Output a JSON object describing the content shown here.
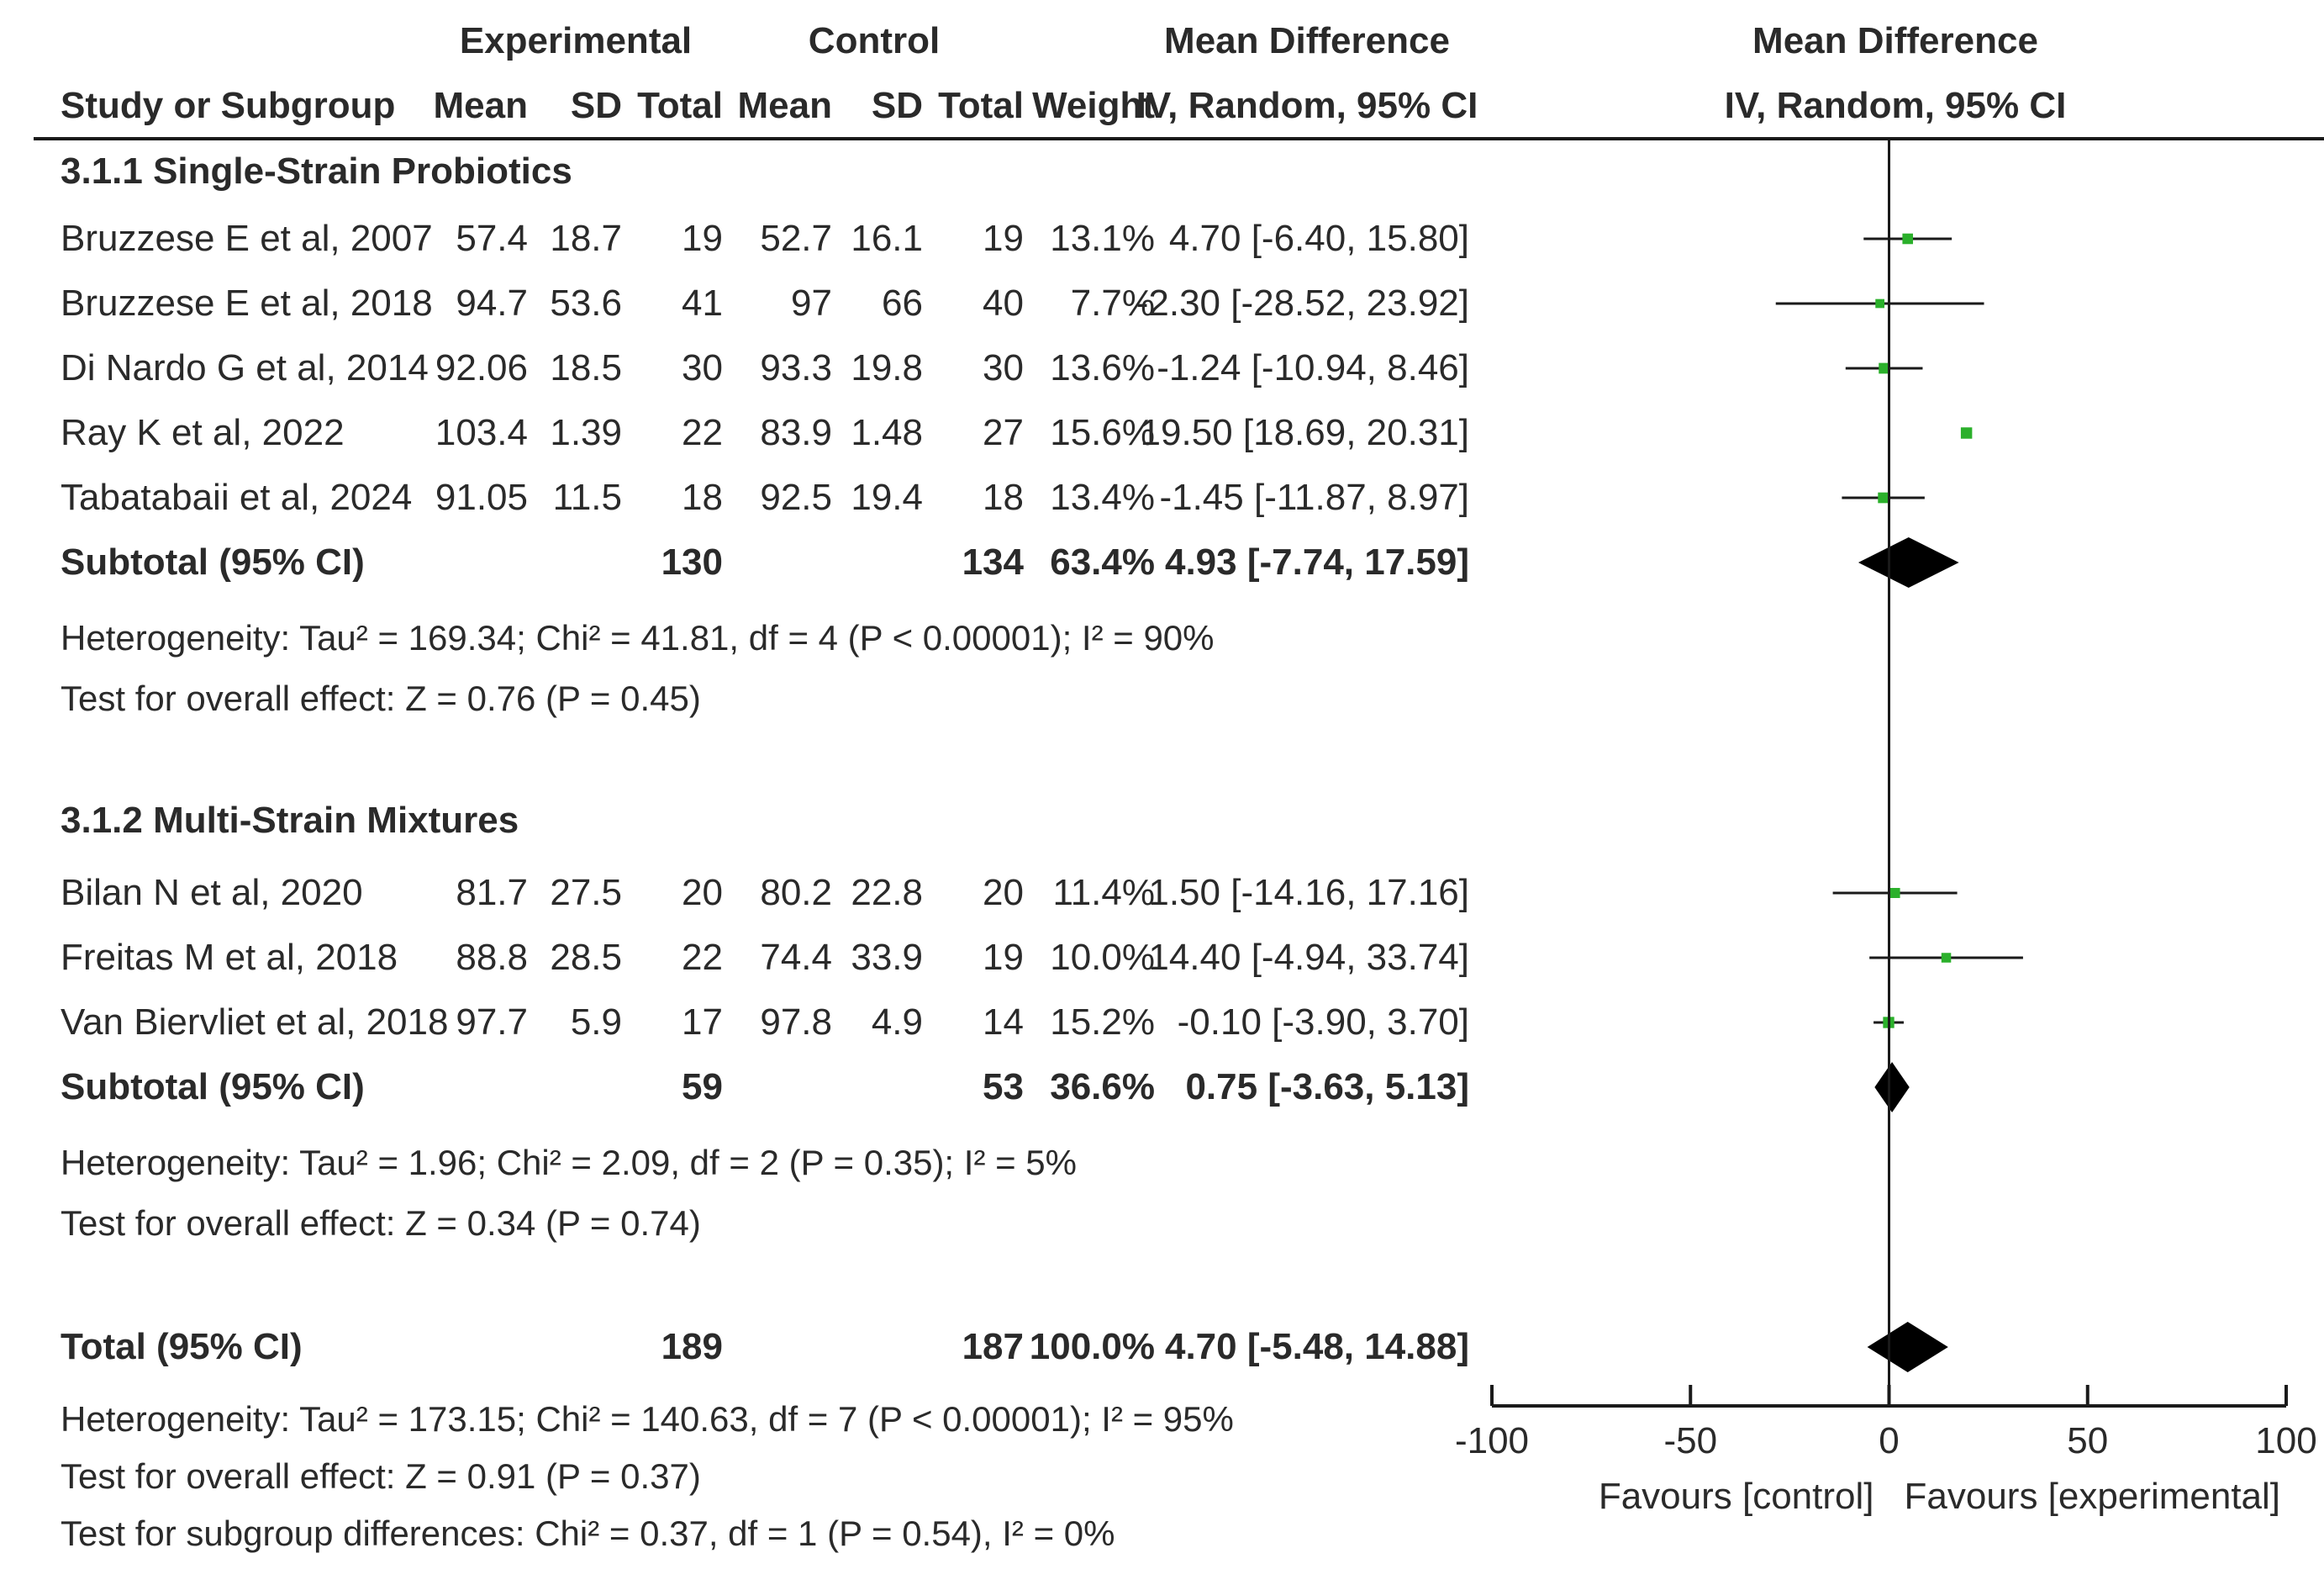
{
  "chart_data": {
    "type": "forest",
    "header": {
      "experimental": "Experimental",
      "control": "Control",
      "mean_difference_col": "Mean Difference",
      "mean_difference_plot": "Mean Difference",
      "study_col": "Study or Subgroup",
      "mean": "Mean",
      "sd": "SD",
      "total": "Total",
      "weight": "Weight",
      "method": "IV, Random, 95% CI",
      "method_plot": "IV, Random, 95% CI"
    },
    "subgroups": [
      {
        "title": "3.1.1 Single-Strain Probiotics",
        "studies": [
          {
            "name": "Bruzzese E et al, 2007",
            "exp_mean": "57.4",
            "exp_sd": "18.7",
            "exp_total": "19",
            "ctl_mean": "52.7",
            "ctl_sd": "16.1",
            "ctl_total": "19",
            "weight_label": "13.1%",
            "ci_label": "4.70 [-6.40, 15.80]",
            "md": 4.7,
            "lo": -6.4,
            "hi": 15.8,
            "weight": 13.1
          },
          {
            "name": "Bruzzese E et al, 2018",
            "exp_mean": "94.7",
            "exp_sd": "53.6",
            "exp_total": "41",
            "ctl_mean": "97",
            "ctl_sd": "66",
            "ctl_total": "40",
            "weight_label": "7.7%",
            "ci_label": "-2.30 [-28.52, 23.92]",
            "md": -2.3,
            "lo": -28.52,
            "hi": 23.92,
            "weight": 7.7
          },
          {
            "name": "Di Nardo G et al, 2014",
            "exp_mean": "92.06",
            "exp_sd": "18.5",
            "exp_total": "30",
            "ctl_mean": "93.3",
            "ctl_sd": "19.8",
            "ctl_total": "30",
            "weight_label": "13.6%",
            "ci_label": "-1.24 [-10.94, 8.46]",
            "md": -1.24,
            "lo": -10.94,
            "hi": 8.46,
            "weight": 13.6
          },
          {
            "name": "Ray K et al, 2022",
            "exp_mean": "103.4",
            "exp_sd": "1.39",
            "exp_total": "22",
            "ctl_mean": "83.9",
            "ctl_sd": "1.48",
            "ctl_total": "27",
            "weight_label": "15.6%",
            "ci_label": "19.50 [18.69, 20.31]",
            "md": 19.5,
            "lo": 18.69,
            "hi": 20.31,
            "weight": 15.6
          },
          {
            "name": "Tabatabaii et al, 2024",
            "exp_mean": "91.05",
            "exp_sd": "11.5",
            "exp_total": "18",
            "ctl_mean": "92.5",
            "ctl_sd": "19.4",
            "ctl_total": "18",
            "weight_label": "13.4%",
            "ci_label": "-1.45 [-11.87, 8.97]",
            "md": -1.45,
            "lo": -11.87,
            "hi": 8.97,
            "weight": 13.4
          }
        ],
        "subtotal": {
          "label": "Subtotal (95% CI)",
          "exp_total": "130",
          "ctl_total": "134",
          "weight_label": "63.4%",
          "ci_label": "4.93 [-7.74, 17.59]",
          "md": 4.93,
          "lo": -7.74,
          "hi": 17.59
        },
        "heterogeneity": "Heterogeneity: Tau² = 169.34; Chi² = 41.81, df = 4 (P < 0.00001); I² = 90%",
        "overall": "Test for overall effect: Z = 0.76 (P = 0.45)"
      },
      {
        "title": "3.1.2 Multi-Strain Mixtures",
        "studies": [
          {
            "name": "Bilan N et al, 2020",
            "exp_mean": "81.7",
            "exp_sd": "27.5",
            "exp_total": "20",
            "ctl_mean": "80.2",
            "ctl_sd": "22.8",
            "ctl_total": "20",
            "weight_label": "11.4%",
            "ci_label": "1.50 [-14.16, 17.16]",
            "md": 1.5,
            "lo": -14.16,
            "hi": 17.16,
            "weight": 11.4
          },
          {
            "name": "Freitas M et al, 2018",
            "exp_mean": "88.8",
            "exp_sd": "28.5",
            "exp_total": "22",
            "ctl_mean": "74.4",
            "ctl_sd": "33.9",
            "ctl_total": "19",
            "weight_label": "10.0%",
            "ci_label": "14.40 [-4.94, 33.74]",
            "md": 14.4,
            "lo": -4.94,
            "hi": 33.74,
            "weight": 10.0
          },
          {
            "name": "Van Biervliet et al, 2018",
            "exp_mean": "97.7",
            "exp_sd": "5.9",
            "exp_total": "17",
            "ctl_mean": "97.8",
            "ctl_sd": "4.9",
            "ctl_total": "14",
            "weight_label": "15.2%",
            "ci_label": "-0.10 [-3.90, 3.70]",
            "md": -0.1,
            "lo": -3.9,
            "hi": 3.7,
            "weight": 15.2
          }
        ],
        "subtotal": {
          "label": "Subtotal (95% CI)",
          "exp_total": "59",
          "ctl_total": "53",
          "weight_label": "36.6%",
          "ci_label": "0.75 [-3.63, 5.13]",
          "md": 0.75,
          "lo": -3.63,
          "hi": 5.13
        },
        "heterogeneity": "Heterogeneity: Tau² = 1.96; Chi² = 2.09, df = 2 (P = 0.35); I² = 5%",
        "overall": "Test for overall effect: Z = 0.34 (P = 0.74)"
      }
    ],
    "total": {
      "label": "Total (95% CI)",
      "exp_total": "189",
      "ctl_total": "187",
      "weight_label": "100.0%",
      "ci_label": "4.70 [-5.48, 14.88]",
      "md": 4.7,
      "lo": -5.48,
      "hi": 14.88
    },
    "footer": [
      "Heterogeneity: Tau² = 173.15; Chi² = 140.63, df = 7 (P < 0.00001); I² = 95%",
      "Test for overall effect: Z = 0.91 (P = 0.37)",
      "Test for subgroup differences: Chi² = 0.37, df = 1 (P = 0.54), I² = 0%"
    ],
    "axis": {
      "min": -100,
      "max": 100,
      "ticks": [
        -100,
        -50,
        0,
        50,
        100
      ],
      "tick_labels": [
        "-100",
        "-50",
        "0",
        "50",
        "100"
      ]
    },
    "favours_left": "Favours [control]",
    "favours_right": "Favours [experimental]",
    "colors": {
      "marker": "#2bb02b",
      "line": "#1a1a1a",
      "text": "#2a2a2a"
    }
  }
}
